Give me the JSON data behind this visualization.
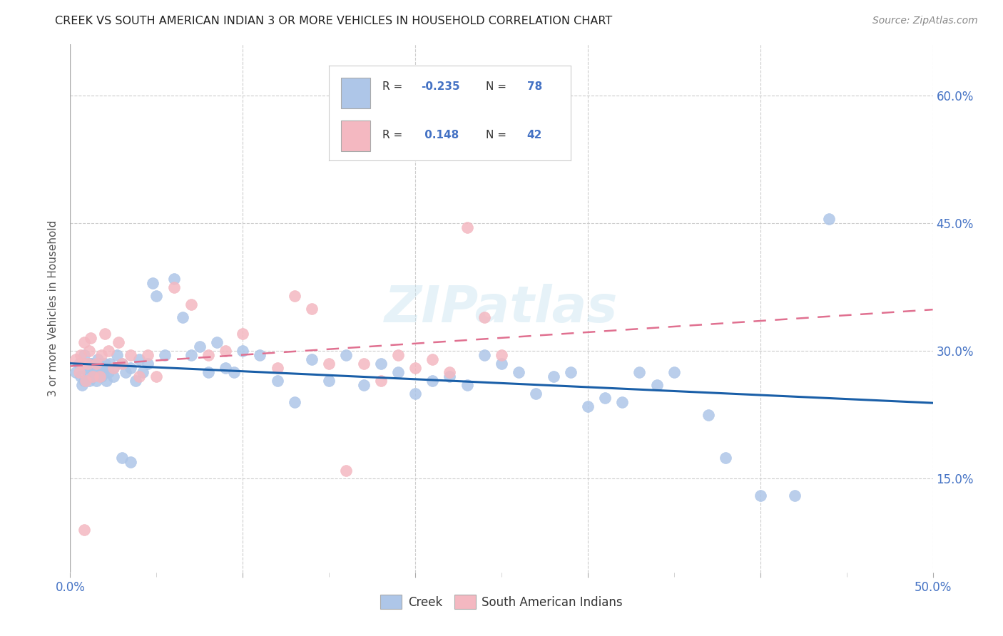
{
  "title": "CREEK VS SOUTH AMERICAN INDIAN 3 OR MORE VEHICLES IN HOUSEHOLD CORRELATION CHART",
  "source": "Source: ZipAtlas.com",
  "ylabel": "3 or more Vehicles in Household",
  "xlim": [
    0.0,
    0.5
  ],
  "ylim": [
    0.04,
    0.66
  ],
  "creek_color": "#aec6e8",
  "sa_color": "#f4b8c1",
  "creek_line_color": "#1a5fa8",
  "sa_line_color": "#e07090",
  "watermark": "ZIPatlas",
  "creek_scatter_x": [
    0.003,
    0.005,
    0.006,
    0.007,
    0.008,
    0.009,
    0.01,
    0.011,
    0.012,
    0.013,
    0.014,
    0.015,
    0.016,
    0.017,
    0.018,
    0.019,
    0.02,
    0.021,
    0.022,
    0.023,
    0.025,
    0.027,
    0.03,
    0.032,
    0.035,
    0.038,
    0.04,
    0.042,
    0.045,
    0.048,
    0.05,
    0.055,
    0.06,
    0.065,
    0.07,
    0.075,
    0.08,
    0.085,
    0.09,
    0.095,
    0.1,
    0.11,
    0.12,
    0.13,
    0.14,
    0.15,
    0.16,
    0.17,
    0.18,
    0.19,
    0.2,
    0.21,
    0.22,
    0.23,
    0.24,
    0.25,
    0.26,
    0.27,
    0.28,
    0.29,
    0.3,
    0.31,
    0.32,
    0.33,
    0.34,
    0.35,
    0.37,
    0.38,
    0.4,
    0.42,
    0.44,
    0.008,
    0.012,
    0.016,
    0.02,
    0.025,
    0.03,
    0.035
  ],
  "creek_scatter_y": [
    0.275,
    0.285,
    0.27,
    0.26,
    0.265,
    0.28,
    0.275,
    0.265,
    0.285,
    0.27,
    0.28,
    0.265,
    0.275,
    0.285,
    0.27,
    0.275,
    0.28,
    0.265,
    0.275,
    0.285,
    0.28,
    0.295,
    0.285,
    0.275,
    0.28,
    0.265,
    0.29,
    0.275,
    0.285,
    0.38,
    0.365,
    0.295,
    0.385,
    0.34,
    0.295,
    0.305,
    0.275,
    0.31,
    0.28,
    0.275,
    0.3,
    0.295,
    0.265,
    0.24,
    0.29,
    0.265,
    0.295,
    0.26,
    0.285,
    0.275,
    0.25,
    0.265,
    0.27,
    0.26,
    0.295,
    0.285,
    0.275,
    0.25,
    0.27,
    0.275,
    0.235,
    0.245,
    0.24,
    0.275,
    0.26,
    0.275,
    0.225,
    0.175,
    0.13,
    0.13,
    0.455,
    0.295,
    0.285,
    0.29,
    0.285,
    0.27,
    0.175,
    0.17
  ],
  "sa_scatter_x": [
    0.003,
    0.005,
    0.006,
    0.007,
    0.008,
    0.009,
    0.01,
    0.011,
    0.012,
    0.013,
    0.015,
    0.017,
    0.018,
    0.02,
    0.022,
    0.025,
    0.028,
    0.03,
    0.035,
    0.04,
    0.045,
    0.05,
    0.06,
    0.07,
    0.08,
    0.09,
    0.1,
    0.12,
    0.13,
    0.14,
    0.15,
    0.16,
    0.17,
    0.18,
    0.19,
    0.2,
    0.21,
    0.22,
    0.23,
    0.24,
    0.25,
    0.008
  ],
  "sa_scatter_y": [
    0.29,
    0.275,
    0.295,
    0.285,
    0.31,
    0.265,
    0.285,
    0.3,
    0.315,
    0.27,
    0.285,
    0.27,
    0.295,
    0.32,
    0.3,
    0.28,
    0.31,
    0.285,
    0.295,
    0.27,
    0.295,
    0.27,
    0.375,
    0.355,
    0.295,
    0.3,
    0.32,
    0.28,
    0.365,
    0.35,
    0.285,
    0.16,
    0.285,
    0.265,
    0.295,
    0.28,
    0.29,
    0.275,
    0.445,
    0.34,
    0.295,
    0.09
  ]
}
